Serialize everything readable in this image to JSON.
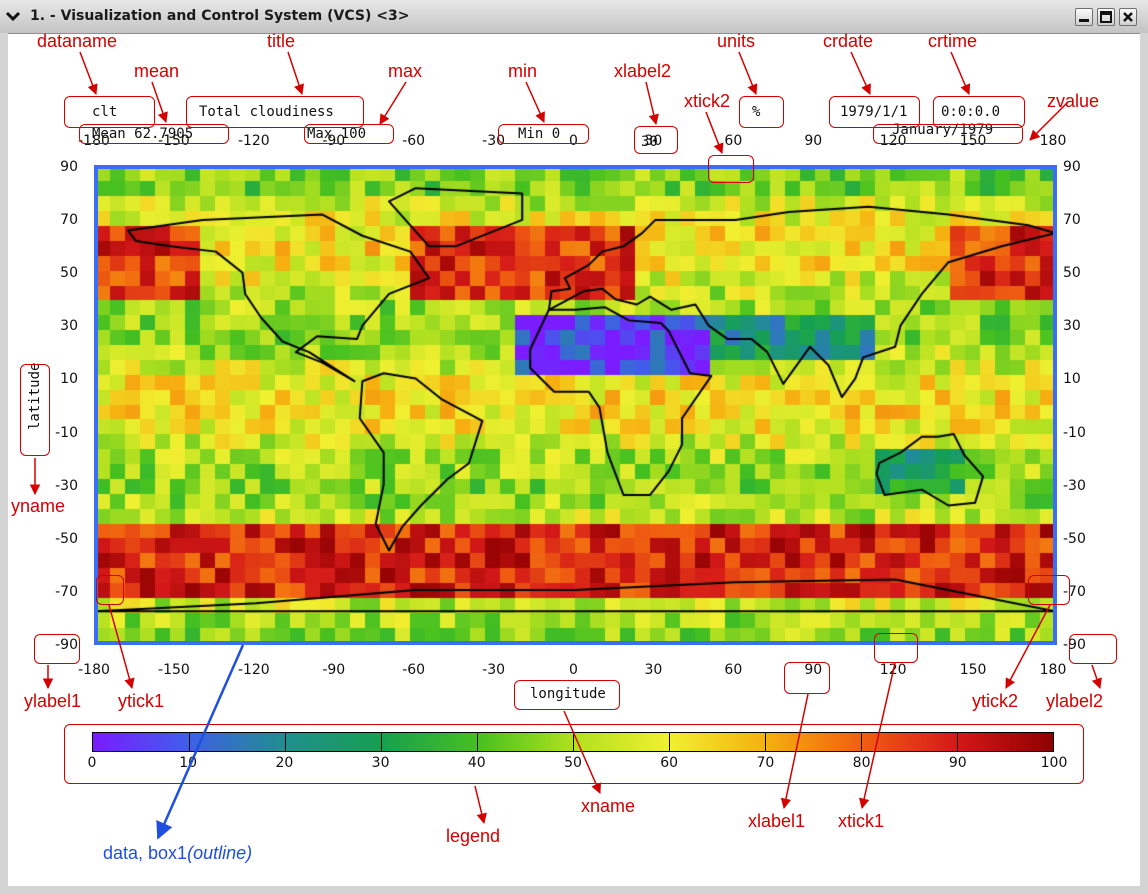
{
  "window": {
    "title": "1. - Visualization and Control System (VCS) <3>",
    "icons": [
      "chevron-down-icon",
      "minimize-icon",
      "maximize-icon",
      "close-icon"
    ]
  },
  "plot": {
    "dataname": "clt",
    "title": "Total cloudiness",
    "units": "%",
    "crdate": "1979/1/1",
    "crtime": "0:0:0.0",
    "mean": "Mean 62.7905",
    "max": "Max 100",
    "min": "Min 0",
    "zvalue": "January/1979",
    "xlabel2_value": "30",
    "xname": "longitude",
    "yname": "latitude"
  },
  "axes": {
    "x_ticks": [
      "-180",
      "-150",
      "-120",
      "-90",
      "-60",
      "-30",
      "0",
      "30",
      "60",
      "90",
      "120",
      "150",
      "180"
    ],
    "y_ticks": [
      "90",
      "70",
      "50",
      "30",
      "10",
      "-10",
      "-30",
      "-50",
      "-70",
      "-90"
    ]
  },
  "legend": {
    "ticks": [
      "0",
      "10",
      "20",
      "30",
      "40",
      "50",
      "60",
      "70",
      "80",
      "90",
      "100"
    ]
  },
  "annotations": {
    "dataname": "dataname",
    "title": "title",
    "units": "units",
    "crdate": "crdate",
    "crtime": "crtime",
    "mean": "mean",
    "max": "max",
    "min": "min",
    "xlabel2": "xlabel2",
    "xtick2": "xtick2",
    "zvalue": "zvalue",
    "yname": "yname",
    "ylabel1": "ylabel1",
    "ytick1": "ytick1",
    "ytick2": "ytick2",
    "ylabel2": "ylabel2",
    "legend": "legend",
    "xname": "xname",
    "xlabel1": "xlabel1",
    "xtick1": "xtick1",
    "data_prefix": "data, box1",
    "data_suffix": "(outline)"
  },
  "colors": {
    "annotation": "#d40000",
    "data_outline": "#3a6ff3",
    "data_annotation": "#1f4fe0"
  }
}
